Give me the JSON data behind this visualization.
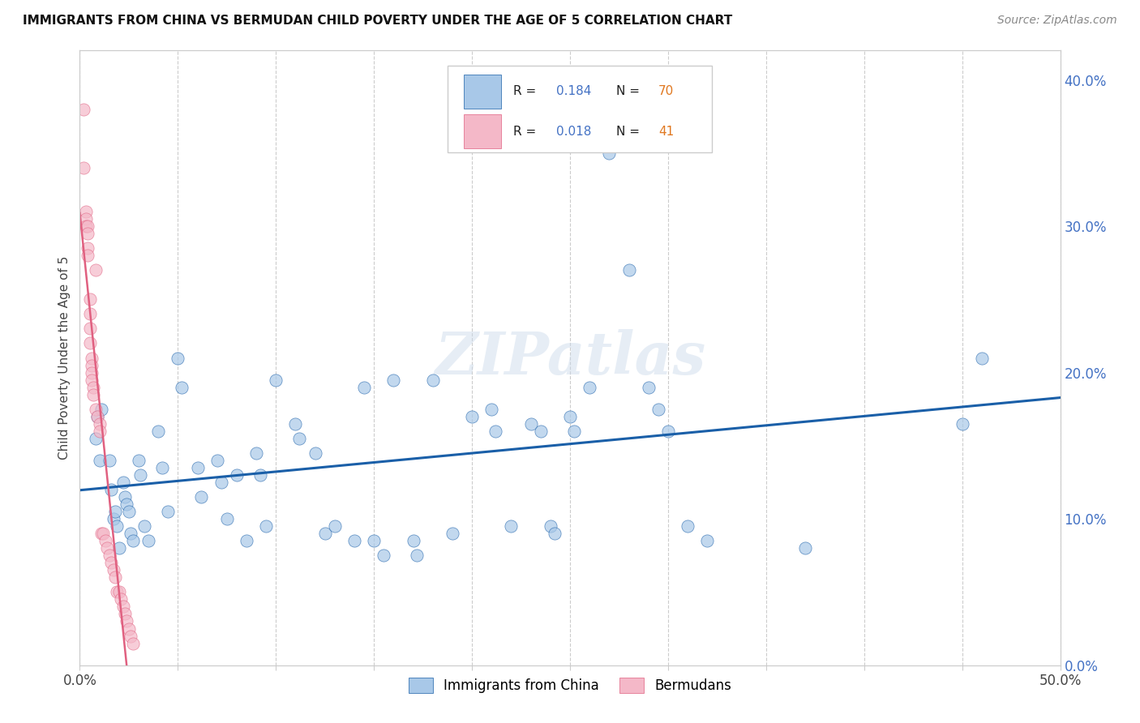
{
  "title": "IMMIGRANTS FROM CHINA VS BERMUDAN CHILD POVERTY UNDER THE AGE OF 5 CORRELATION CHART",
  "source": "Source: ZipAtlas.com",
  "ylabel": "Child Poverty Under the Age of 5",
  "xlim": [
    0.0,
    0.5
  ],
  "ylim": [
    0.0,
    0.42
  ],
  "xticks": [
    0.0,
    0.05,
    0.1,
    0.15,
    0.2,
    0.25,
    0.3,
    0.35,
    0.4,
    0.45,
    0.5
  ],
  "xticklabels": [
    "0.0%",
    "",
    "",
    "",
    "",
    "",
    "",
    "",
    "",
    "",
    "50.0%"
  ],
  "yticks_right": [
    0.0,
    0.1,
    0.2,
    0.3,
    0.4
  ],
  "yticklabels_right": [
    "0.0%",
    "10.0%",
    "20.0%",
    "30.0%",
    "40.0%"
  ],
  "color_blue": "#a8c8e8",
  "color_pink": "#f4b8c8",
  "color_line_blue": "#1a5fa8",
  "color_line_pink": "#e06080",
  "blue_x": [
    0.008,
    0.009,
    0.01,
    0.011,
    0.015,
    0.016,
    0.017,
    0.018,
    0.019,
    0.02,
    0.022,
    0.023,
    0.024,
    0.025,
    0.026,
    0.027,
    0.03,
    0.031,
    0.033,
    0.035,
    0.04,
    0.042,
    0.045,
    0.05,
    0.052,
    0.06,
    0.062,
    0.07,
    0.072,
    0.075,
    0.08,
    0.085,
    0.09,
    0.092,
    0.095,
    0.1,
    0.11,
    0.112,
    0.12,
    0.125,
    0.13,
    0.14,
    0.145,
    0.15,
    0.155,
    0.16,
    0.17,
    0.172,
    0.18,
    0.19,
    0.2,
    0.21,
    0.212,
    0.22,
    0.23,
    0.235,
    0.24,
    0.242,
    0.25,
    0.252,
    0.26,
    0.27,
    0.28,
    0.29,
    0.295,
    0.3,
    0.31,
    0.32,
    0.37,
    0.45,
    0.46
  ],
  "blue_y": [
    0.155,
    0.17,
    0.14,
    0.175,
    0.14,
    0.12,
    0.1,
    0.105,
    0.095,
    0.08,
    0.125,
    0.115,
    0.11,
    0.105,
    0.09,
    0.085,
    0.14,
    0.13,
    0.095,
    0.085,
    0.16,
    0.135,
    0.105,
    0.21,
    0.19,
    0.135,
    0.115,
    0.14,
    0.125,
    0.1,
    0.13,
    0.085,
    0.145,
    0.13,
    0.095,
    0.195,
    0.165,
    0.155,
    0.145,
    0.09,
    0.095,
    0.085,
    0.19,
    0.085,
    0.075,
    0.195,
    0.085,
    0.075,
    0.195,
    0.09,
    0.17,
    0.175,
    0.16,
    0.095,
    0.165,
    0.16,
    0.095,
    0.09,
    0.17,
    0.16,
    0.19,
    0.35,
    0.27,
    0.19,
    0.175,
    0.16,
    0.095,
    0.085,
    0.08,
    0.165,
    0.21
  ],
  "pink_x": [
    0.002,
    0.002,
    0.003,
    0.003,
    0.003,
    0.004,
    0.004,
    0.004,
    0.004,
    0.005,
    0.005,
    0.005,
    0.005,
    0.006,
    0.006,
    0.006,
    0.006,
    0.007,
    0.007,
    0.008,
    0.008,
    0.009,
    0.01,
    0.01,
    0.011,
    0.012,
    0.013,
    0.014,
    0.015,
    0.016,
    0.017,
    0.018,
    0.019,
    0.02,
    0.021,
    0.022,
    0.023,
    0.024,
    0.025,
    0.026,
    0.027
  ],
  "pink_y": [
    0.38,
    0.34,
    0.31,
    0.305,
    0.3,
    0.3,
    0.295,
    0.285,
    0.28,
    0.25,
    0.24,
    0.23,
    0.22,
    0.21,
    0.205,
    0.2,
    0.195,
    0.19,
    0.185,
    0.27,
    0.175,
    0.17,
    0.165,
    0.16,
    0.09,
    0.09,
    0.085,
    0.08,
    0.075,
    0.07,
    0.065,
    0.06,
    0.05,
    0.05,
    0.045,
    0.04,
    0.035,
    0.03,
    0.025,
    0.02,
    0.015
  ],
  "watermark": "ZIPatlas",
  "figsize": [
    14.06,
    8.92
  ],
  "dpi": 100
}
